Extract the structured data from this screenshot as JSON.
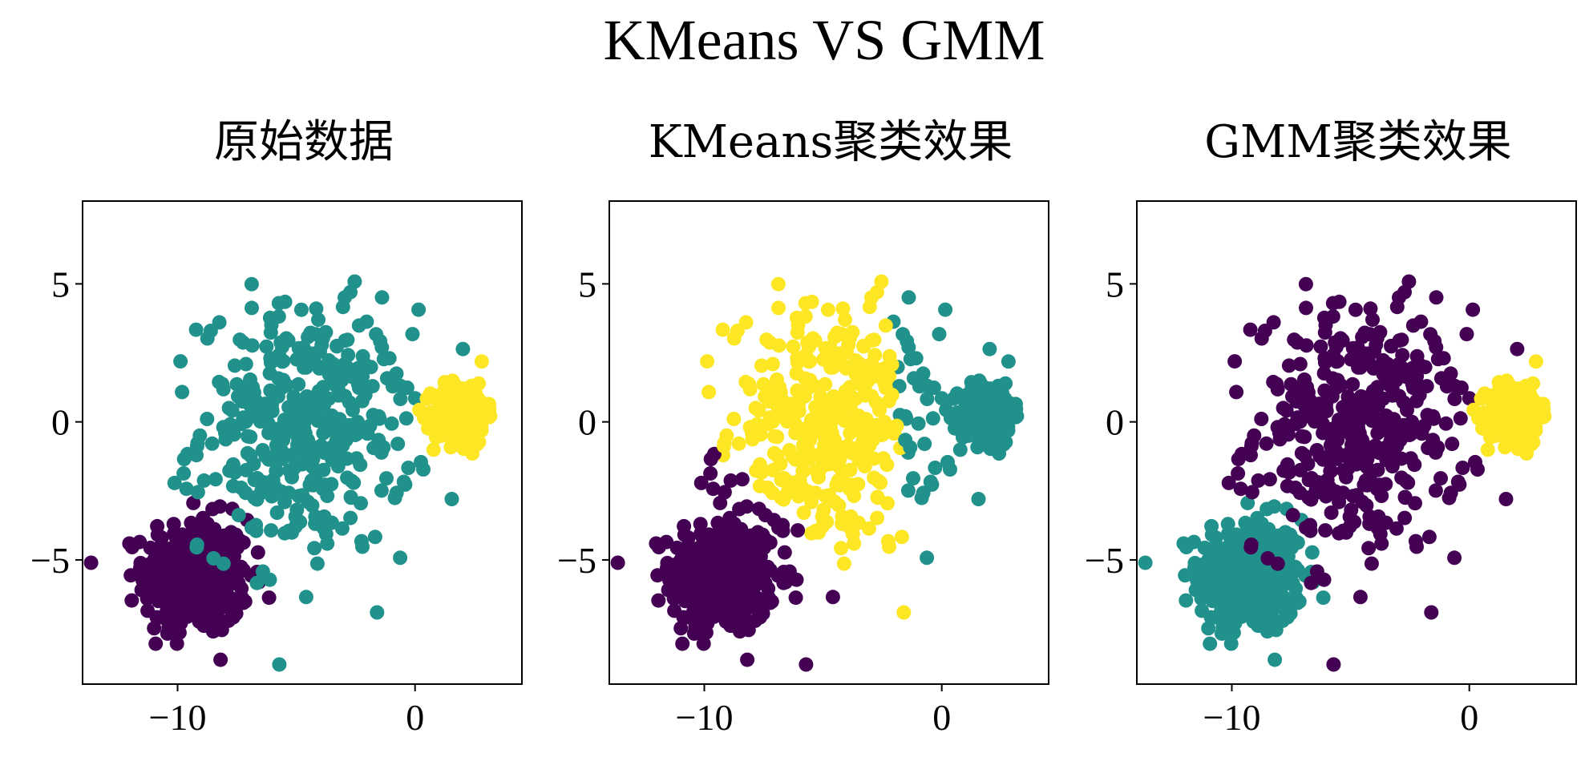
{
  "suptitle": "KMeans VS GMM",
  "colors": {
    "purple": "#440154",
    "teal": "#21918c",
    "yellow": "#fde725"
  },
  "chart_data": [
    {
      "type": "scatter",
      "title": "原始数据",
      "xlim": [
        -14,
        4.5
      ],
      "ylim": [
        -9.5,
        8
      ],
      "xticks": [
        -10,
        0
      ],
      "yticks": [
        -5,
        0,
        5
      ],
      "xtick_labels": [
        "−10",
        "0"
      ],
      "ytick_labels": [
        "−5",
        "0",
        "5"
      ],
      "series": [
        {
          "color": "purple",
          "cluster": {
            "mean": [
              -9.2,
              -5.6
            ],
            "std": [
              1.1,
              1.05
            ],
            "n": 400
          }
        },
        {
          "color": "teal",
          "cluster": {
            "mean": [
              -4.6,
              -0.3
            ],
            "std": [
              2.2,
              2.2
            ],
            "n": 400
          }
        },
        {
          "color": "yellow",
          "cluster": {
            "mean": [
              1.9,
              0.3
            ],
            "std": [
              0.55,
              0.55
            ],
            "n": 400
          }
        }
      ]
    },
    {
      "type": "scatter",
      "title": "KMeans聚类效果",
      "xlim": [
        -14,
        4.5
      ],
      "ylim": [
        -9.5,
        8
      ],
      "xticks": [
        -10,
        0
      ],
      "yticks": [
        -5,
        0,
        5
      ],
      "xtick_labels": [
        "−10",
        "0"
      ],
      "ytick_labels": [
        "−5",
        "0",
        "5"
      ],
      "assignment": "kmeans"
    },
    {
      "type": "scatter",
      "title": "GMM聚类效果",
      "xlim": [
        -14,
        4.5
      ],
      "ylim": [
        -9.5,
        8
      ],
      "xticks": [
        -10,
        0
      ],
      "yticks": [
        -5,
        0,
        5
      ],
      "xtick_labels": [
        "−10",
        "0"
      ],
      "ytick_labels": [
        "−5",
        "0",
        "5"
      ],
      "assignment": "gmm"
    }
  ]
}
